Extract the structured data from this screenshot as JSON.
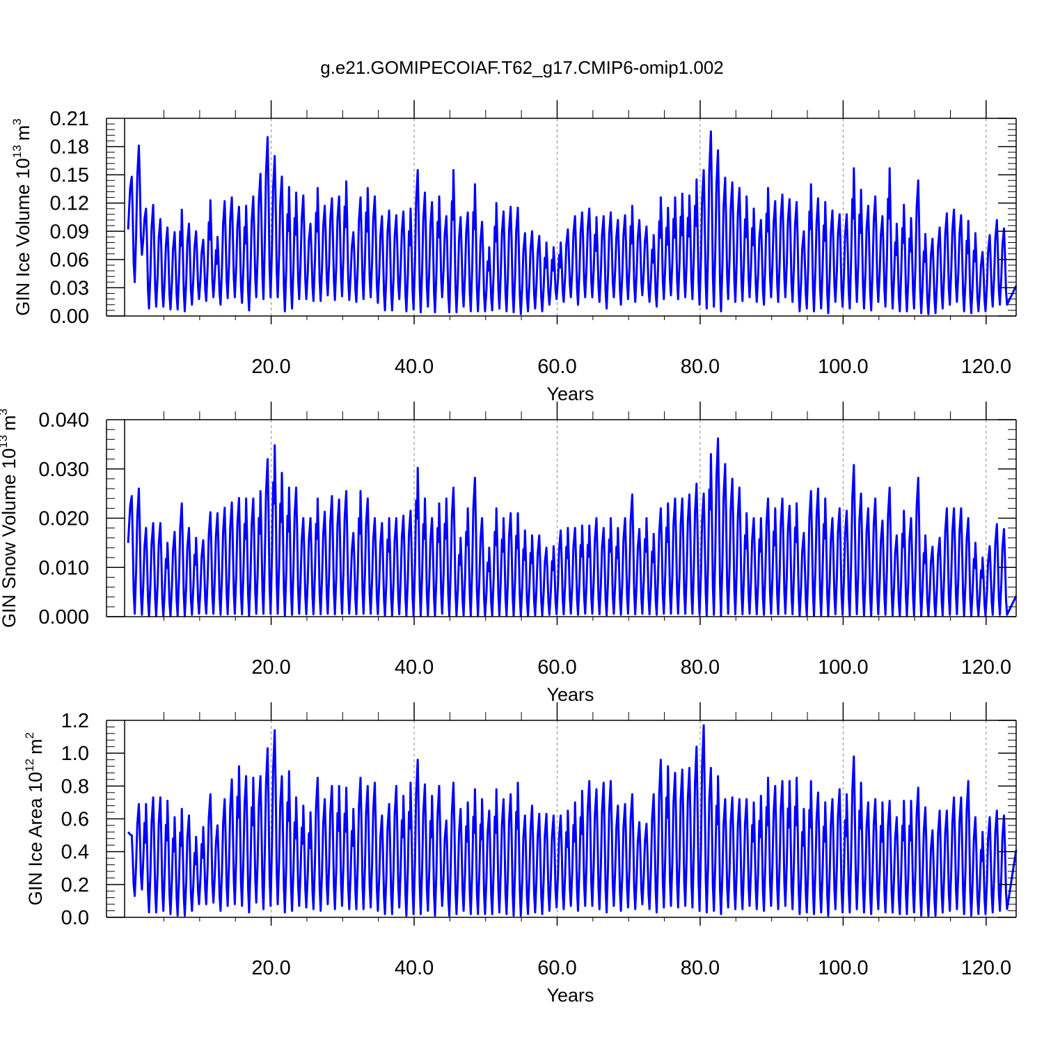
{
  "title": "g.e21.GOMIPECOIAF.T62_g17.CMIP6-omip1.002",
  "colors": {
    "series": "#0000ff",
    "axis": "#000000",
    "grid": "#888888"
  },
  "chart_data": [
    {
      "type": "line",
      "xlabel": "Years",
      "ylabel_text": "GIN Ice Volume 10",
      "ylabel_exp": "13",
      "ylabel_unit": "m",
      "ylabel_unit_exp": "3",
      "xlim": [
        -0.5,
        124.2
      ],
      "ylim": [
        0.0,
        0.21
      ],
      "xticks": [
        20,
        40,
        60,
        80,
        100,
        120
      ],
      "xtick_labels": [
        "20.0",
        "40.0",
        "60.0",
        "80.0",
        "100.0",
        "120.0"
      ],
      "yticks": [
        0.0,
        0.03,
        0.06,
        0.09,
        0.12,
        0.15,
        0.18,
        0.21
      ],
      "ytick_labels": [
        "0.00",
        "0.03",
        "0.06",
        "0.09",
        "0.12",
        "0.15",
        "0.18",
        "0.21"
      ],
      "series": [
        {
          "x_start": 0.5,
          "maxima": [
            0.148,
            0.181,
            0.114,
            0.118,
            0.103,
            0.094,
            0.089,
            0.113,
            0.098,
            0.09,
            0.081,
            0.123,
            0.084,
            0.122,
            0.126,
            0.116,
            0.117,
            0.127,
            0.151,
            0.19,
            0.17,
            0.148,
            0.137,
            0.131,
            0.128,
            0.098,
            0.136,
            0.117,
            0.125,
            0.127,
            0.143,
            0.089,
            0.126,
            0.136,
            0.127,
            0.106,
            0.112,
            0.107,
            0.111,
            0.114,
            0.155,
            0.131,
            0.121,
            0.127,
            0.106,
            0.155,
            0.105,
            0.11,
            0.14,
            0.1,
            0.073,
            0.12,
            0.111,
            0.116,
            0.115,
            0.088,
            0.09,
            0.085,
            0.078,
            0.073,
            0.078,
            0.092,
            0.106,
            0.11,
            0.114,
            0.105,
            0.106,
            0.11,
            0.102,
            0.107,
            0.117,
            0.102,
            0.095,
            0.086,
            0.126,
            0.115,
            0.126,
            0.13,
            0.128,
            0.145,
            0.155,
            0.196,
            0.176,
            0.147,
            0.142,
            0.136,
            0.127,
            0.114,
            0.102,
            0.136,
            0.122,
            0.129,
            0.124,
            0.121,
            0.09,
            0.14,
            0.125,
            0.121,
            0.112,
            0.108,
            0.108,
            0.157,
            0.134,
            0.117,
            0.127,
            0.106,
            0.157,
            0.098,
            0.118,
            0.104,
            0.144,
            0.087,
            0.082,
            0.094,
            0.109,
            0.113,
            0.107,
            0.101,
            0.088,
            0.068,
            0.086,
            0.102,
            0.093
          ],
          "minima": [
            0.036,
            0.065,
            0.008,
            0.01,
            0.01,
            0.007,
            0.007,
            0.005,
            0.012,
            0.018,
            0.016,
            0.02,
            0.012,
            0.019,
            0.02,
            0.014,
            0.006,
            0.02,
            0.018,
            0.02,
            0.02,
            0.005,
            0.008,
            0.018,
            0.018,
            0.016,
            0.016,
            0.022,
            0.017,
            0.021,
            0.017,
            0.015,
            0.018,
            0.02,
            0.014,
            0.006,
            0.006,
            0.018,
            0.005,
            0.007,
            0.004,
            0.01,
            0.004,
            0.02,
            0.004,
            0.004,
            0.01,
            0.005,
            0.005,
            0.005,
            0.006,
            0.008,
            0.005,
            0.004,
            0.002,
            0.005,
            0.008,
            0.005,
            0.012,
            0.018,
            0.015,
            0.02,
            0.012,
            0.02,
            0.02,
            0.015,
            0.008,
            0.02,
            0.012,
            0.018,
            0.015,
            0.022,
            0.015,
            0.01,
            0.018,
            0.022,
            0.018,
            0.02,
            0.018,
            0.012,
            0.008,
            0.01,
            0.005,
            0.018,
            0.015,
            0.016,
            0.02,
            0.015,
            0.012,
            0.02,
            0.015,
            0.02,
            0.015,
            0.005,
            0.008,
            0.005,
            0.008,
            0.003,
            0.015,
            0.01,
            0.008,
            0.015,
            0.008,
            0.006,
            0.015,
            0.01,
            0.008,
            0.005,
            0.005,
            0.008,
            0.003,
            0.002,
            0.003,
            0.008,
            0.012,
            0.015,
            0.005,
            0.003,
            0.005,
            0.005,
            0.01,
            0.012,
            0.012
          ],
          "start_value": 0.092,
          "end_value": 0.032
        }
      ]
    },
    {
      "type": "line",
      "xlabel": "Years",
      "ylabel_text": "GIN Snow Volume 10",
      "ylabel_exp": "13",
      "ylabel_unit": "m",
      "ylabel_unit_exp": "3",
      "xlim": [
        -0.5,
        124.2
      ],
      "ylim": [
        0.0,
        0.04
      ],
      "xticks": [
        20,
        40,
        60,
        80,
        100,
        120
      ],
      "xtick_labels": [
        "20.0",
        "40.0",
        "60.0",
        "80.0",
        "100.0",
        "120.0"
      ],
      "yticks": [
        0.0,
        0.01,
        0.02,
        0.03,
        0.04
      ],
      "ytick_labels": [
        "0.000",
        "0.010",
        "0.020",
        "0.030",
        "0.040"
      ],
      "series": [
        {
          "x_start": 0.5,
          "maxima": [
            0.0245,
            0.026,
            0.018,
            0.019,
            0.019,
            0.015,
            0.0172,
            0.023,
            0.018,
            0.016,
            0.0155,
            0.0212,
            0.021,
            0.0221,
            0.0232,
            0.0241,
            0.024,
            0.024,
            0.0255,
            0.032,
            0.0348,
            0.0292,
            0.0262,
            0.0262,
            0.02,
            0.02,
            0.024,
            0.0213,
            0.0245,
            0.0238,
            0.0255,
            0.017,
            0.0255,
            0.024,
            0.02,
            0.019,
            0.02,
            0.02,
            0.0205,
            0.0215,
            0.0302,
            0.024,
            0.02,
            0.023,
            0.024,
            0.0262,
            0.016,
            0.022,
            0.0282,
            0.02,
            0.014,
            0.022,
            0.02,
            0.021,
            0.021,
            0.0175,
            0.0165,
            0.0165,
            0.014,
            0.0143,
            0.0175,
            0.018,
            0.018,
            0.0185,
            0.0185,
            0.02,
            0.018,
            0.02,
            0.018,
            0.02,
            0.0248,
            0.0178,
            0.02,
            0.0168,
            0.022,
            0.023,
            0.024,
            0.024,
            0.0248,
            0.027,
            0.025,
            0.033,
            0.0362,
            0.031,
            0.028,
            0.0262,
            0.021,
            0.02,
            0.02,
            0.024,
            0.022,
            0.024,
            0.0225,
            0.023,
            0.017,
            0.0255,
            0.026,
            0.024,
            0.02,
            0.022,
            0.0215,
            0.0308,
            0.025,
            0.022,
            0.024,
            0.0195,
            0.0262,
            0.0165,
            0.0215,
            0.02,
            0.0282,
            0.0165,
            0.0142,
            0.016,
            0.022,
            0.022,
            0.022,
            0.02,
            0.015,
            0.012,
            0.0143,
            0.0188,
            0.0178
          ],
          "minima": [
            0.0006,
            0.0004,
            0.0001,
            0.0001,
            0.0001,
            0.0001,
            0.0002,
            0.0001,
            0.0004,
            0.0006,
            0.0006,
            0.0006,
            0.0004,
            0.0005,
            0.0006,
            0.0005,
            0.0002,
            0.0006,
            0.0006,
            0.0006,
            0.0006,
            0.0002,
            0.0004,
            0.0006,
            0.0005,
            0.0005,
            0.0005,
            0.0006,
            0.0005,
            0.0006,
            0.0006,
            0.0005,
            0.0006,
            0.0006,
            0.0005,
            0.0002,
            0.0002,
            0.0005,
            0.0002,
            0.0002,
            0.0002,
            0.0003,
            0.0002,
            0.0006,
            0.0002,
            0.0002,
            0.0003,
            0.0002,
            0.0002,
            0.0002,
            0.0002,
            0.0003,
            0.0002,
            0.0002,
            0.0001,
            0.0002,
            0.0003,
            0.0002,
            0.0004,
            0.0005,
            0.0005,
            0.0006,
            0.0004,
            0.0006,
            0.0006,
            0.0005,
            0.0003,
            0.0006,
            0.0004,
            0.0006,
            0.0005,
            0.0006,
            0.0005,
            0.0004,
            0.0006,
            0.0006,
            0.0006,
            0.0006,
            0.0006,
            0.0004,
            0.0003,
            0.0004,
            0.0002,
            0.0006,
            0.0005,
            0.0005,
            0.0006,
            0.0005,
            0.0004,
            0.0006,
            0.0005,
            0.0006,
            0.0005,
            0.0002,
            0.0003,
            0.0002,
            0.0003,
            0.0001,
            0.0005,
            0.0004,
            0.0003,
            0.0005,
            0.0003,
            0.0002,
            0.0005,
            0.0004,
            0.0003,
            0.0002,
            0.0002,
            0.0003,
            0.0001,
            0.0001,
            0.0001,
            0.0003,
            0.0004,
            0.0005,
            0.0002,
            0.0001,
            0.0002,
            0.0002,
            0.0004,
            0.0004,
            0.0004
          ],
          "start_value": 0.015,
          "end_value": 0.0042
        }
      ]
    },
    {
      "type": "line",
      "xlabel": "Years",
      "ylabel_text": "GIN Ice Area 10",
      "ylabel_exp": "12",
      "ylabel_unit": "m",
      "ylabel_unit_exp": "2",
      "xlim": [
        -0.5,
        124.2
      ],
      "ylim": [
        0.0,
        1.2
      ],
      "xticks": [
        20,
        40,
        60,
        80,
        100,
        120
      ],
      "xtick_labels": [
        "20.0",
        "40.0",
        "60.0",
        "80.0",
        "100.0",
        "120.0"
      ],
      "yticks": [
        0.0,
        0.2,
        0.4,
        0.6,
        0.8,
        1.0,
        1.2
      ],
      "ytick_labels": [
        "0.0",
        "0.2",
        "0.4",
        "0.6",
        "0.8",
        "1.0",
        "1.2"
      ],
      "series": [
        {
          "x_start": 0.5,
          "maxima": [
            0.5,
            0.69,
            0.69,
            0.73,
            0.73,
            0.71,
            0.61,
            0.66,
            0.62,
            0.49,
            0.55,
            0.75,
            0.56,
            0.72,
            0.84,
            0.92,
            0.86,
            0.85,
            0.86,
            1.03,
            1.14,
            0.86,
            0.89,
            0.73,
            0.68,
            0.64,
            0.85,
            0.72,
            0.8,
            0.8,
            0.79,
            0.66,
            0.85,
            0.8,
            0.82,
            0.62,
            0.69,
            0.8,
            0.74,
            0.82,
            0.96,
            0.81,
            0.74,
            0.8,
            0.59,
            0.82,
            0.66,
            0.7,
            0.78,
            0.72,
            0.65,
            0.78,
            0.72,
            0.75,
            0.82,
            0.62,
            0.68,
            0.63,
            0.63,
            0.62,
            0.62,
            0.65,
            0.7,
            0.77,
            0.83,
            0.78,
            0.82,
            0.83,
            0.68,
            0.69,
            0.75,
            0.58,
            0.57,
            0.75,
            0.96,
            0.92,
            0.88,
            0.9,
            0.91,
            1.04,
            1.17,
            0.91,
            0.86,
            0.72,
            0.73,
            0.72,
            0.72,
            0.7,
            0.74,
            0.85,
            0.8,
            0.83,
            0.83,
            0.85,
            0.66,
            0.83,
            0.76,
            0.7,
            0.72,
            0.78,
            0.75,
            0.98,
            0.82,
            0.7,
            0.72,
            0.7,
            0.71,
            0.61,
            0.71,
            0.71,
            0.79,
            0.67,
            0.53,
            0.65,
            0.65,
            0.73,
            0.73,
            0.83,
            0.61,
            0.52,
            0.61,
            0.65,
            0.62
          ],
          "minima": [
            0.13,
            0.17,
            0.03,
            0.03,
            0.04,
            0.02,
            0.01,
            0.01,
            0.04,
            0.08,
            0.08,
            0.09,
            0.04,
            0.07,
            0.08,
            0.07,
            0.03,
            0.09,
            0.05,
            0.07,
            0.08,
            0.03,
            0.04,
            0.07,
            0.06,
            0.05,
            0.04,
            0.08,
            0.05,
            0.07,
            0.05,
            0.05,
            0.05,
            0.06,
            0.04,
            0.02,
            0.02,
            0.06,
            0.01,
            0.02,
            0.02,
            0.04,
            0.01,
            0.07,
            0.01,
            0.02,
            0.04,
            0.02,
            0.02,
            0.02,
            0.02,
            0.03,
            0.02,
            0.01,
            0.01,
            0.02,
            0.03,
            0.02,
            0.04,
            0.06,
            0.05,
            0.07,
            0.04,
            0.07,
            0.07,
            0.05,
            0.03,
            0.07,
            0.04,
            0.06,
            0.05,
            0.08,
            0.05,
            0.03,
            0.06,
            0.07,
            0.06,
            0.07,
            0.06,
            0.04,
            0.03,
            0.04,
            0.02,
            0.06,
            0.05,
            0.05,
            0.07,
            0.05,
            0.04,
            0.07,
            0.05,
            0.07,
            0.05,
            0.02,
            0.03,
            0.02,
            0.03,
            0.01,
            0.05,
            0.03,
            0.03,
            0.05,
            0.03,
            0.02,
            0.05,
            0.03,
            0.03,
            0.02,
            0.02,
            0.03,
            0.01,
            0.01,
            0.01,
            0.03,
            0.04,
            0.05,
            0.02,
            0.01,
            0.02,
            0.02,
            0.03,
            0.04,
            0.05
          ],
          "start_value": 0.52,
          "end_value": 0.41
        }
      ]
    }
  ]
}
